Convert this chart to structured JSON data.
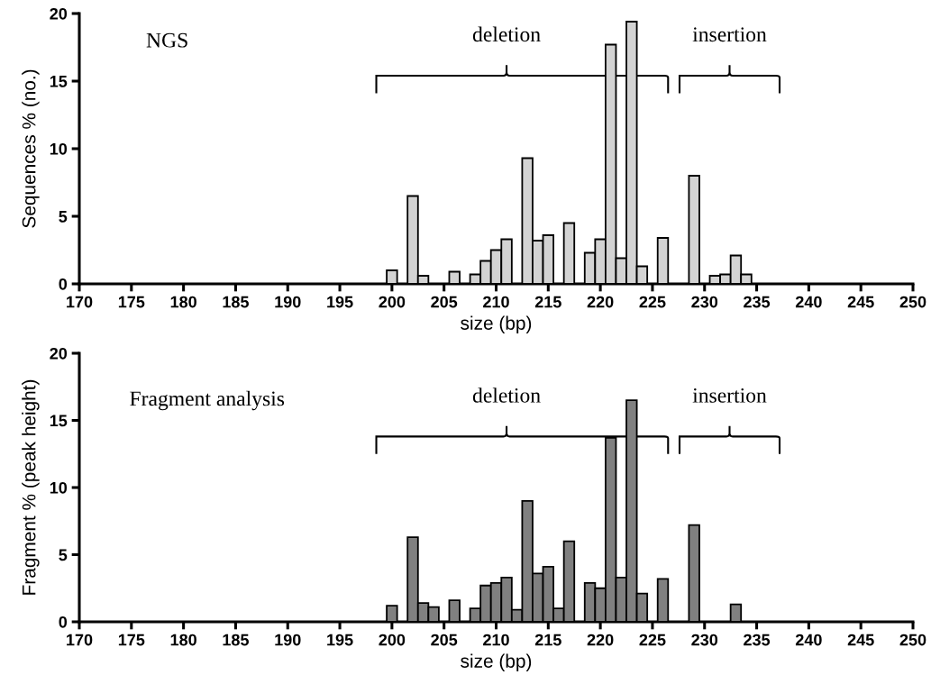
{
  "chart_data": [
    {
      "type": "bar",
      "title": "NGS",
      "xlabel": "size (bp)",
      "ylabel": "Sequences % (no.)",
      "x": [
        200,
        202,
        203,
        206,
        208,
        209,
        210,
        211,
        213,
        214,
        215,
        217,
        219,
        220,
        221,
        222,
        223,
        224,
        226,
        229,
        231,
        232,
        233,
        234
      ],
      "values": [
        1.0,
        6.5,
        0.6,
        0.9,
        0.7,
        1.7,
        2.5,
        3.3,
        9.3,
        3.2,
        3.6,
        4.5,
        2.3,
        3.3,
        17.7,
        1.9,
        19.4,
        1.3,
        3.4,
        8.0,
        0.6,
        0.7,
        2.1,
        0.7
      ],
      "color": "#d3d3d3",
      "xlim": [
        170,
        250
      ],
      "xticks": [
        170,
        175,
        180,
        185,
        190,
        195,
        200,
        205,
        210,
        215,
        220,
        225,
        230,
        235,
        240,
        245,
        250
      ],
      "ylim": [
        0,
        20
      ],
      "yticks": [
        0,
        5,
        10,
        15,
        20
      ],
      "grid": false,
      "annotations": [
        "deletion",
        "insertion"
      ]
    },
    {
      "type": "bar",
      "title": "Fragment analysis",
      "xlabel": "size (bp)",
      "ylabel": "Fragment % (peak height)",
      "x": [
        200,
        202,
        203,
        204,
        206,
        208,
        209,
        210,
        211,
        212,
        213,
        214,
        215,
        216,
        217,
        219,
        220,
        221,
        222,
        223,
        224,
        226,
        229,
        233
      ],
      "values": [
        1.2,
        6.3,
        1.4,
        1.1,
        1.6,
        1.0,
        2.7,
        2.9,
        3.3,
        0.9,
        9.0,
        3.6,
        4.1,
        1.0,
        6.0,
        2.9,
        2.5,
        13.7,
        3.3,
        16.5,
        2.1,
        3.2,
        7.2,
        1.3
      ],
      "color": "#808080",
      "xlim": [
        170,
        250
      ],
      "xticks": [
        170,
        175,
        180,
        185,
        190,
        195,
        200,
        205,
        210,
        215,
        220,
        225,
        230,
        235,
        240,
        245,
        250
      ],
      "ylim": [
        0,
        20
      ],
      "yticks": [
        0,
        5,
        10,
        15,
        20
      ],
      "grid": false,
      "annotations": [
        "deletion",
        "insertion"
      ]
    }
  ]
}
